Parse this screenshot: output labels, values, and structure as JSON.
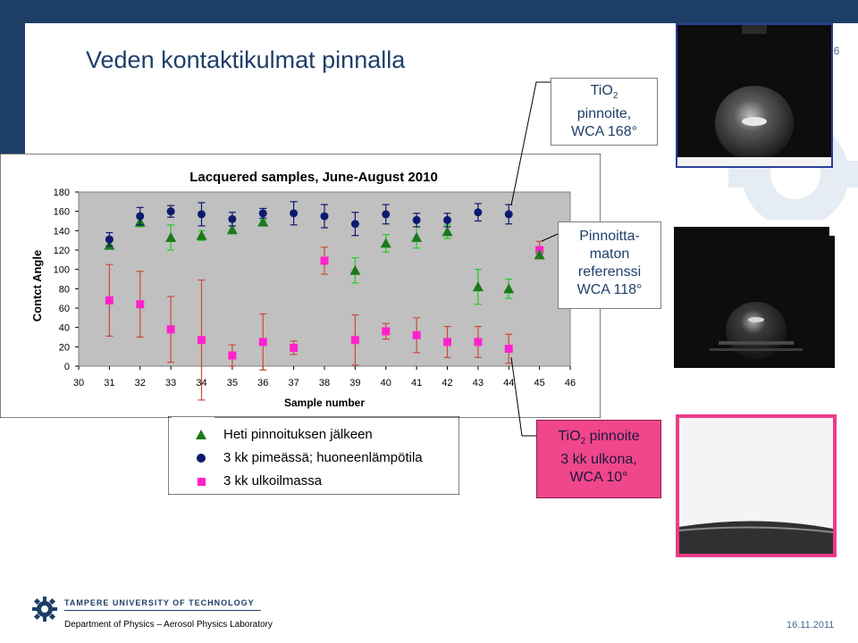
{
  "slide": {
    "title": "Veden kontaktikulmat pinnalla",
    "page_number": "16",
    "date": "16.11.2011",
    "university": "TAMPERE UNIVERSITY OF TECHNOLOGY",
    "department": "Department of Physics – Aerosol Physics Laboratory"
  },
  "callouts": {
    "tio2_line1": "TiO",
    "tio2_sub": "2",
    "tio2_line2": "pinnoite,",
    "tio2_line3": "WCA 168°",
    "ref_line1": "Pinnoitta-",
    "ref_line2": "maton",
    "ref_line3": "referenssi",
    "ref_line4": "WCA 118°",
    "out_line1": "TiO",
    "out_sub": "2",
    "out_line1b": " pinnoite",
    "out_line2": "3 kk ulkona,",
    "out_line3": "WCA 10°"
  },
  "colors": {
    "header": "#1d3e66",
    "title": "#1f3f6a",
    "series_green": "#1b7a1b",
    "series_green_err": "#22cc22",
    "series_navy": "#0c1a6e",
    "series_magenta": "#ff22cc",
    "series_magenta_err": "#c94a3a",
    "plot_bg": "#c0c0c0",
    "callout_pink": "#f0468c"
  },
  "chart_data": {
    "type": "scatter",
    "title": "Lacquered samples, June-August 2010",
    "xlabel": "Sample number",
    "ylabel": "Contct Angle",
    "xlim": [
      30,
      46
    ],
    "ylim": [
      0,
      180
    ],
    "x_ticks": [
      30,
      31,
      32,
      33,
      34,
      35,
      36,
      37,
      38,
      39,
      40,
      41,
      42,
      43,
      44,
      45,
      46
    ],
    "y_ticks": [
      0,
      20,
      40,
      60,
      80,
      100,
      120,
      140,
      160,
      180
    ],
    "grid": false,
    "legend_position": "bottom",
    "series": [
      {
        "name": "Heti pinnoituksen jälkeen",
        "marker": "triangle",
        "points": [
          {
            "x": 31,
            "y": 125,
            "err": 4
          },
          {
            "x": 32,
            "y": 149,
            "err": 5
          },
          {
            "x": 33,
            "y": 133,
            "err": 13
          },
          {
            "x": 34,
            "y": 135,
            "err": 5
          },
          {
            "x": 35,
            "y": 141,
            "err": 4
          },
          {
            "x": 36,
            "y": 149,
            "err": 2
          },
          {
            "x": 39,
            "y": 99,
            "err": 13
          },
          {
            "x": 40,
            "y": 127,
            "err": 9
          },
          {
            "x": 41,
            "y": 133,
            "err": 11
          },
          {
            "x": 42,
            "y": 139,
            "err": 7
          },
          {
            "x": 43,
            "y": 82,
            "err": 18
          },
          {
            "x": 44,
            "y": 80,
            "err": 10
          },
          {
            "x": 45,
            "y": 115,
            "err": 3
          }
        ]
      },
      {
        "name": "3 kk pimeässä; huoneenlämpötila",
        "marker": "circle",
        "points": [
          {
            "x": 31,
            "y": 131,
            "err": 7
          },
          {
            "x": 32,
            "y": 155,
            "err": 9
          },
          {
            "x": 33,
            "y": 160,
            "err": 6
          },
          {
            "x": 34,
            "y": 157,
            "err": 12
          },
          {
            "x": 35,
            "y": 152,
            "err": 7
          },
          {
            "x": 36,
            "y": 158,
            "err": 5
          },
          {
            "x": 37,
            "y": 158,
            "err": 12
          },
          {
            "x": 38,
            "y": 155,
            "err": 12
          },
          {
            "x": 39,
            "y": 147,
            "err": 12
          },
          {
            "x": 40,
            "y": 157,
            "err": 10
          },
          {
            "x": 41,
            "y": 151,
            "err": 7
          },
          {
            "x": 42,
            "y": 151,
            "err": 7
          },
          {
            "x": 43,
            "y": 159,
            "err": 9
          },
          {
            "x": 44,
            "y": 157,
            "err": 10
          }
        ]
      },
      {
        "name": "3 kk ulkoilmassa",
        "marker": "square",
        "points": [
          {
            "x": 31,
            "y": 68,
            "err": 37
          },
          {
            "x": 32,
            "y": 64,
            "err": 34
          },
          {
            "x": 33,
            "y": 38,
            "err": 34
          },
          {
            "x": 34,
            "y": 27,
            "err": 62
          },
          {
            "x": 35,
            "y": 11,
            "err": 11
          },
          {
            "x": 36,
            "y": 25,
            "err": 29
          },
          {
            "x": 37,
            "y": 19,
            "err": 7
          },
          {
            "x": 38,
            "y": 109,
            "err": 14
          },
          {
            "x": 39,
            "y": 27,
            "err": 26
          },
          {
            "x": 40,
            "y": 36,
            "err": 8
          },
          {
            "x": 41,
            "y": 32,
            "err": 18
          },
          {
            "x": 42,
            "y": 25,
            "err": 16
          },
          {
            "x": 43,
            "y": 25,
            "err": 16
          },
          {
            "x": 44,
            "y": 18,
            "err": 15
          },
          {
            "x": 45,
            "y": 120,
            "err": 9
          }
        ]
      }
    ]
  }
}
